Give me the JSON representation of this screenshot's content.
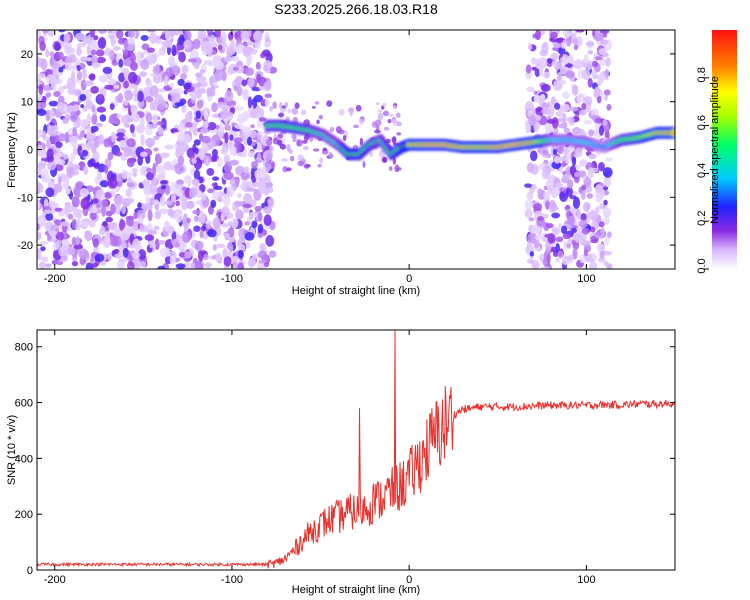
{
  "title": "S233.2025.266.18.03.R18",
  "chart_data": [
    {
      "type": "heatmap",
      "name": "spectrogram",
      "xlabel": "Height of straight line (km)",
      "ylabel": "Frequency (Hz)",
      "xlim": [
        -210,
        150
      ],
      "ylim": [
        -25,
        25
      ],
      "x_ticks": [
        -200,
        -100,
        0,
        100
      ],
      "y_ticks": [
        -20,
        -10,
        0,
        10,
        20
      ],
      "colorbar": {
        "label": "Normalized spectral amplitude",
        "range": [
          0,
          1
        ],
        "ticks": [
          0.0,
          0.2,
          0.4,
          0.6,
          0.8
        ],
        "tick_labels": [
          "0.0",
          "0.2",
          "0.4",
          "0.6",
          "0.8"
        ]
      },
      "ridge": {
        "x": [
          -80,
          -72,
          -64,
          -56,
          -48,
          -40,
          -34,
          -28,
          -22,
          -16,
          -10,
          -4,
          0,
          10,
          20,
          30,
          40,
          50,
          60,
          70,
          80,
          90,
          100,
          110,
          120,
          130,
          140,
          150
        ],
        "freq": [
          5,
          5,
          4.5,
          4,
          3,
          1,
          -1,
          -1,
          1,
          2,
          -1,
          0.5,
          1,
          1,
          1,
          0.5,
          0.5,
          0.5,
          1,
          1.5,
          2,
          2,
          1.5,
          0.5,
          2,
          2.5,
          3.5,
          3.5
        ],
        "amp": [
          0.55,
          0.6,
          0.6,
          0.55,
          0.45,
          0.45,
          0.7,
          0.65,
          0.6,
          0.5,
          0.6,
          0.75,
          0.8,
          0.9,
          0.95,
          0.85,
          0.8,
          0.9,
          0.95,
          0.85,
          0.4,
          0.35,
          0.4,
          0.3,
          0.55,
          0.65,
          0.8,
          0.85
        ]
      },
      "noise_regions": [
        {
          "x": [
            -210,
            -77
          ],
          "freq": [
            -25,
            25
          ]
        },
        {
          "x": [
            67,
            113
          ],
          "freq": [
            -25,
            25
          ]
        }
      ]
    },
    {
      "type": "line",
      "name": "snr",
      "xlabel": "Height of straight line (km)",
      "ylabel": "SNR (10 * v/v)",
      "xlim": [
        -210,
        150
      ],
      "ylim": [
        0,
        860
      ],
      "x_ticks": [
        -200,
        -100,
        0,
        100
      ],
      "y_ticks": [
        0,
        200,
        400,
        600,
        800
      ],
      "color": "#e8302c",
      "trend": {
        "x": [
          -210,
          -80,
          -75,
          -70,
          -65,
          -60,
          -55,
          -50,
          -45,
          -40,
          -35,
          -30,
          -25,
          -20,
          -15,
          -10,
          -5,
          0,
          5,
          10,
          15,
          20,
          25,
          30,
          40,
          50,
          60,
          70,
          80,
          90,
          100,
          110,
          120,
          130,
          140,
          150
        ],
        "y": [
          20,
          20,
          25,
          40,
          70,
          110,
          140,
          160,
          180,
          190,
          205,
          210,
          220,
          240,
          260,
          280,
          300,
          330,
          380,
          430,
          480,
          520,
          555,
          575,
          585,
          585,
          585,
          588,
          590,
          590,
          590,
          592,
          592,
          595,
          595,
          597
        ]
      },
      "spikes": [
        {
          "x": -28,
          "y": 580
        },
        {
          "x": -20,
          "y": 310
        },
        {
          "x": -12,
          "y": 330
        },
        {
          "x": -8,
          "y": 860
        }
      ]
    }
  ]
}
